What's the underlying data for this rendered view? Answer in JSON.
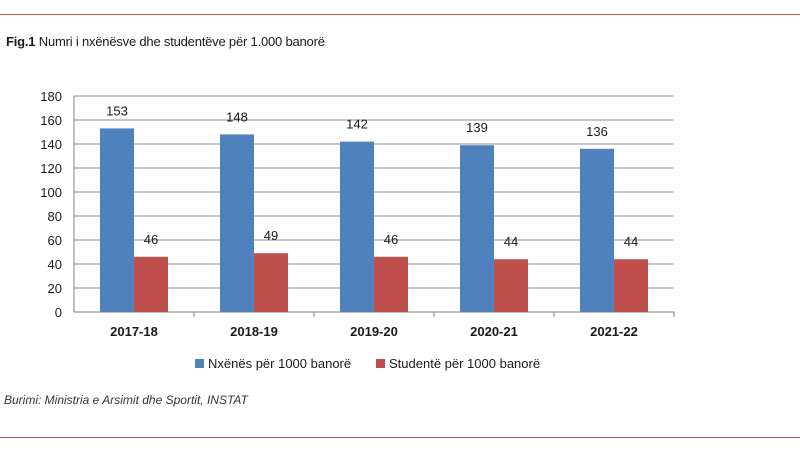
{
  "figure": {
    "label": "Fig.1",
    "title": "Numri i nxënësve dhe studentëve për 1.000 banorë",
    "source": "Burimi: Ministria e Arsimit dhe Sportit, INSTAT"
  },
  "chart_data": {
    "type": "bar",
    "categories": [
      "2017-18",
      "2018-19",
      "2019-20",
      "2020-21",
      "2021-22"
    ],
    "series": [
      {
        "name": "Nxënës për 1000 banorë",
        "values": [
          153,
          148,
          142,
          139,
          136
        ],
        "color": "#4f81bd"
      },
      {
        "name": "Studentë për 1000 banorë",
        "values": [
          46,
          49,
          46,
          44,
          44
        ],
        "color": "#c0504d"
      }
    ],
    "ylim": [
      0,
      180
    ],
    "yticks": [
      0,
      20,
      40,
      60,
      80,
      100,
      120,
      140,
      160,
      180
    ],
    "grid": true,
    "legend_position": "bottom",
    "data_labels": true
  }
}
